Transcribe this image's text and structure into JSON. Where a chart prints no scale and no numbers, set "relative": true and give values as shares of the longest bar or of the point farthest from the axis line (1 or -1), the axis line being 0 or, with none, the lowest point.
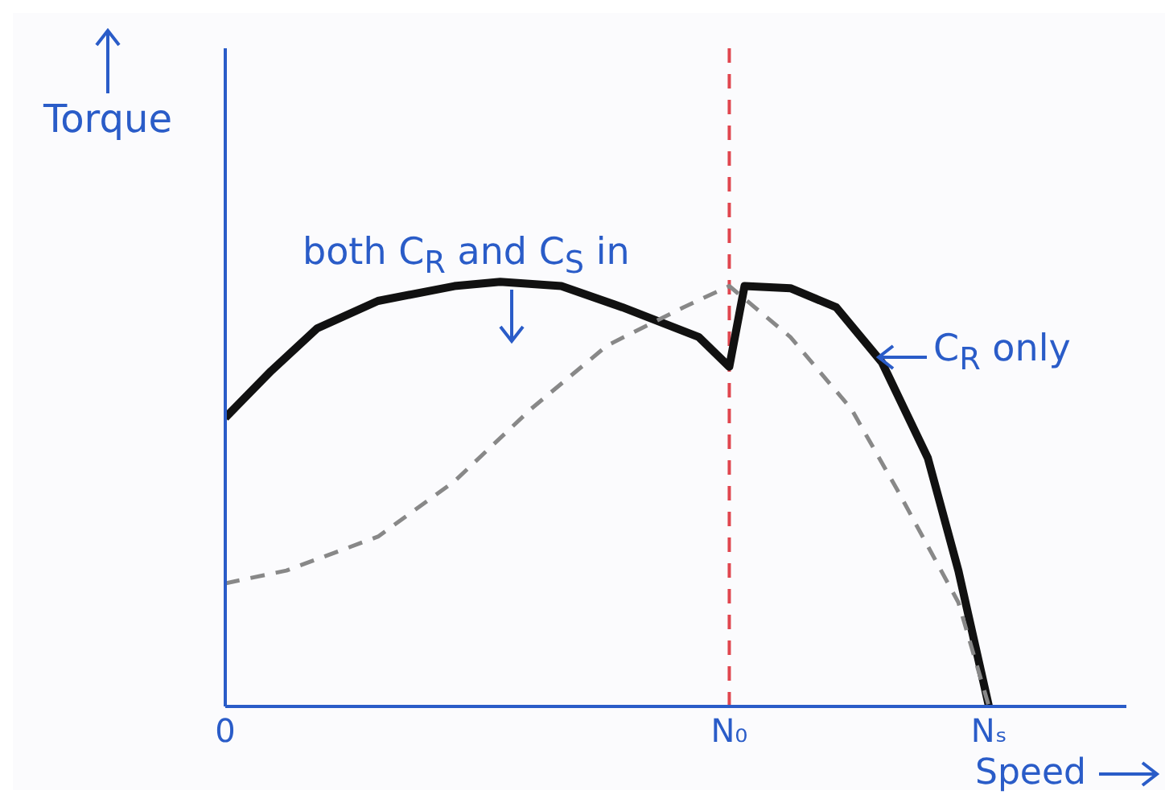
{
  "chart_data": {
    "type": "line",
    "relative": true,
    "xlabel": "Speed",
    "ylabel": "Torque",
    "marker": "none",
    "categories": [
      "0",
      null,
      null,
      null,
      null,
      null,
      null,
      null,
      null,
      null,
      null,
      null,
      null,
      null,
      null,
      null,
      null,
      null,
      null,
      null,
      null,
      null,
      null,
      null,
      null,
      null,
      null,
      null,
      null,
      null,
      null,
      null,
      null,
      "N₀",
      null,
      null,
      null,
      null,
      null,
      null,
      null,
      null,
      null,
      null,
      null,
      null,
      null,
      null,
      null,
      null,
      "Nₛ",
      null,
      null,
      null,
      null,
      null,
      null,
      null,
      null,
      null
    ],
    "series": [
      {
        "color": "#111111",
        "line_style": "solid",
        "values": [
          0.68,
          null,
          null,
          0.79,
          null,
          null,
          0.89,
          null,
          null,
          null,
          0.955,
          null,
          null,
          null,
          null,
          0.99,
          null,
          null,
          1,
          null,
          null,
          null,
          0.99,
          null,
          null,
          null,
          0.94,
          null,
          null,
          null,
          null,
          0.87,
          null,
          0.8,
          0.99,
          null,
          null,
          0.985,
          null,
          null,
          0.94,
          null,
          null,
          0.81,
          null,
          null,
          0.585,
          null,
          0.32,
          null,
          0,
          null,
          null,
          null,
          null,
          null,
          null,
          null,
          null,
          null
        ]
      },
      {
        "color": "#888888",
        "line_style": "dashed",
        "values": [
          0.29,
          null,
          null,
          null,
          0.32,
          null,
          null,
          null,
          null,
          null,
          0.4,
          null,
          null,
          null,
          null,
          0.53,
          null,
          null,
          null,
          null,
          0.7,
          null,
          null,
          null,
          null,
          0.85,
          null,
          null,
          null,
          null,
          0.94,
          null,
          null,
          0.99,
          null,
          null,
          null,
          0.87,
          null,
          null,
          null,
          0.7,
          null,
          null,
          0.51,
          null,
          null,
          null,
          0.245,
          null,
          0,
          null,
          null,
          null,
          null,
          null,
          null,
          null,
          null,
          null
        ]
      }
    ],
    "ref_lines": [
      {
        "axis": "x",
        "value": "N₀",
        "color": "#e0464f",
        "line_style": "dashed"
      }
    ],
    "annotations": [
      "both C$_{R}$ and C$_{S}$ in",
      "C$_{R}$ only"
    ]
  }
}
